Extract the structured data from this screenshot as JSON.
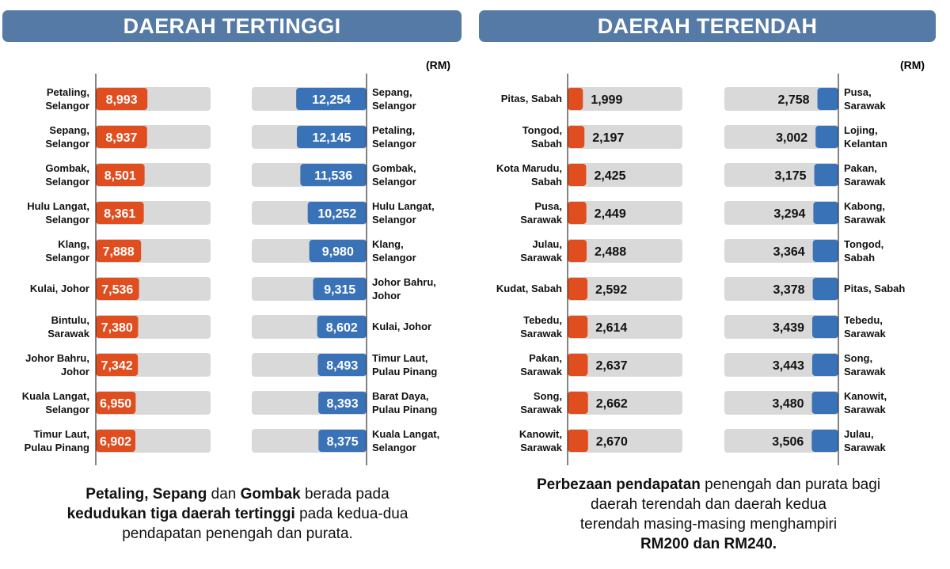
{
  "left_panel": {
    "banner": "DAERAH TERTINGGI",
    "unit": "(RM)",
    "note": {
      "l1_b1": "Petaling, Sepang",
      "l1_t1": " dan ",
      "l1_b2": "Gombak",
      "l1_t2": " berada pada",
      "l2_b1": "kedudukan tiga daerah tertinggi",
      "l2_t1": " pada kedua-dua",
      "l3_t1": "pendapatan penengah dan purata."
    }
  },
  "right_panel": {
    "banner": "DAERAH TERENDAH",
    "unit": "(RM)",
    "note": {
      "l1_b1": "Perbezaan pendapatan",
      "l1_t1": " penengah dan purata bagi",
      "l2_t1": "daerah terendah dan daerah kedua",
      "l3_t1": "terendah masing-masing menghampiri",
      "l4_b1": "RM200 dan RM240."
    }
  },
  "colors": {
    "orange": "#e04e1f",
    "blue": "#3a72b8",
    "track": "#d9d9d9",
    "banner": "#557aa6"
  },
  "chart_data": [
    {
      "type": "bar",
      "panel": "DAERAH TERTINGGI",
      "side": "left",
      "color": "orange",
      "xlim": [
        0,
        20000
      ],
      "labels": [
        "Petaling,\nSelangor",
        "Sepang,\nSelangor",
        "Gombak,\nSelangor",
        "Hulu Langat,\nSelangor",
        "Klang,\nSelangor",
        "Kulai, Johor",
        "Bintulu,\nSarawak",
        "Johor Bahru,\nJohor",
        "Kuala Langat,\nSelangor",
        "Timur Laut,\nPulau Pinang"
      ],
      "values": [
        8993,
        8937,
        8501,
        8361,
        7888,
        7536,
        7380,
        7342,
        6950,
        6902
      ],
      "value_labels": [
        "8,993",
        "8,937",
        "8,501",
        "8,361",
        "7,888",
        "7,536",
        "7,380",
        "7,342",
        "6,950",
        "6,902"
      ]
    },
    {
      "type": "bar",
      "panel": "DAERAH TERTINGGI",
      "side": "right",
      "color": "blue",
      "xlim": [
        0,
        20000
      ],
      "labels": [
        "Sepang,\nSelangor",
        "Petaling,\nSelangor",
        "Gombak,\nSelangor",
        "Hulu Langat,\nSelangor",
        "Klang,\nSelangor",
        "Johor Bahru,\nJohor",
        "Kulai, Johor",
        "Timur Laut,\nPulau Pinang",
        "Barat Daya,\nPulau Pinang",
        "Kuala Langat,\nSelangor"
      ],
      "values": [
        12254,
        12145,
        11536,
        10252,
        9980,
        9315,
        8602,
        8493,
        8393,
        8375
      ],
      "value_labels": [
        "12,254",
        "12,145",
        "11,536",
        "10,252",
        "9,980",
        "9,315",
        "8,602",
        "8,493",
        "8,393",
        "8,375"
      ]
    },
    {
      "type": "bar",
      "panel": "DAERAH TERENDAH",
      "side": "left",
      "color": "orange",
      "xlim": [
        0,
        15000
      ],
      "labels": [
        "Pitas, Sabah",
        "Tongod,\nSabah",
        "Kota Marudu,\nSabah",
        "Pusa,\nSarawak",
        "Julau,\nSarawak",
        "Kudat, Sabah",
        "Tebedu,\nSarawak",
        "Pakan,\nSarawak",
        "Song,\nSarawak",
        "Kanowit,\nSarawak"
      ],
      "values": [
        1999,
        2197,
        2425,
        2449,
        2488,
        2592,
        2614,
        2637,
        2662,
        2670
      ],
      "value_labels": [
        "1,999",
        "2,197",
        "2,425",
        "2,449",
        "2,488",
        "2,592",
        "2,614",
        "2,637",
        "2,662",
        "2,670"
      ]
    },
    {
      "type": "bar",
      "panel": "DAERAH TERENDAH",
      "side": "right",
      "color": "blue",
      "xlim": [
        0,
        15000
      ],
      "labels": [
        "Pusa,\nSarawak",
        "Lojing,\nKelantan",
        "Pakan,\nSarawak",
        "Kabong,\nSarawak",
        "Tongod,\nSabah",
        "Pitas, Sabah",
        "Tebedu,\nSarawak",
        "Song,\nSarawak",
        "Kanowit,\nSarawak",
        "Julau,\nSarawak"
      ],
      "values": [
        2758,
        3002,
        3175,
        3294,
        3364,
        3378,
        3439,
        3443,
        3480,
        3506
      ],
      "value_labels": [
        "2,758",
        "3,002",
        "3,175",
        "3,294",
        "3,364",
        "3,378",
        "3,439",
        "3,443",
        "3,480",
        "3,506"
      ]
    }
  ]
}
